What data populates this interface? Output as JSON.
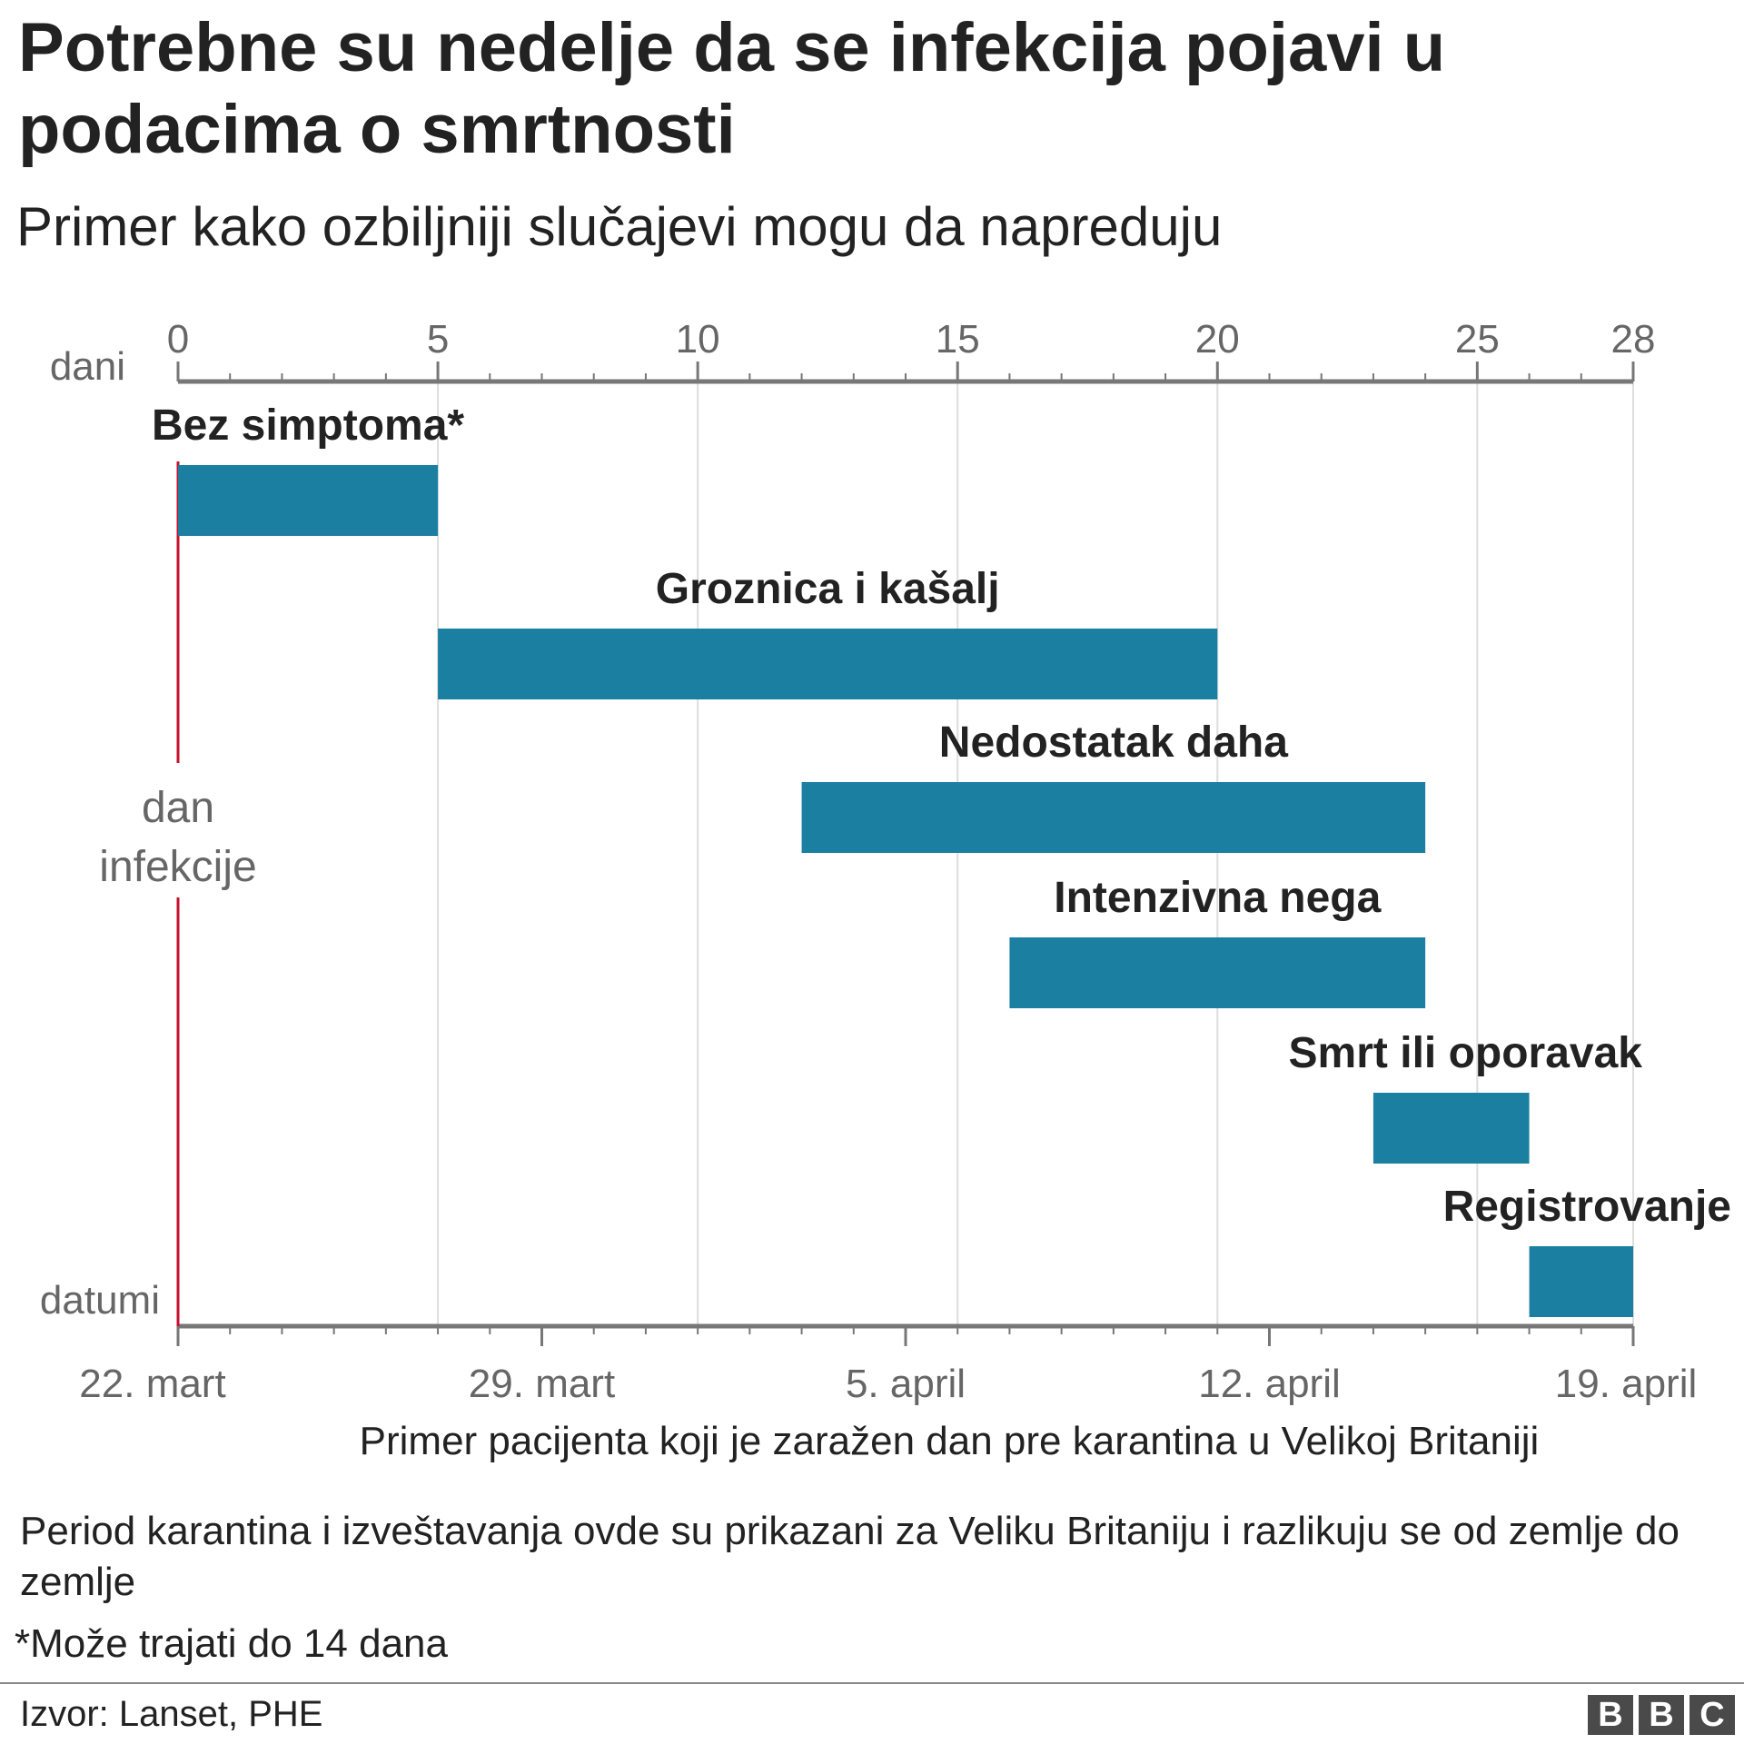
{
  "title": "Potrebne su nedelje da se infekcija pojavi u podacima o smrtnosti",
  "subtitle": "Primer kako ozbiljniji slučajevi mogu da napreduju",
  "chart_data": {
    "type": "bar",
    "orientation": "horizontal-timeline",
    "top_axis_label": "dani",
    "bottom_axis_label": "datumi",
    "xlim": [
      0,
      28
    ],
    "top_ticks": [
      0,
      5,
      10,
      15,
      20,
      25,
      28
    ],
    "bottom_ticks": [
      {
        "day": 0,
        "label": "22. mart"
      },
      {
        "day": 7,
        "label": "29. mart"
      },
      {
        "day": 14,
        "label": "5. april"
      },
      {
        "day": 21,
        "label": "12. april"
      },
      {
        "day": 28,
        "label": "19. april"
      }
    ],
    "grid": true,
    "infection_marker": {
      "day": 0,
      "label_line1": "dan",
      "label_line2": "infekcije",
      "color": "#c8102e"
    },
    "bar_color": "#1b7fa1",
    "bars": [
      {
        "label": "Bez simptoma*",
        "start": 0,
        "end": 5
      },
      {
        "label": "Groznica i kašalj",
        "start": 5,
        "end": 20
      },
      {
        "label": "Nedostatak daha",
        "start": 12,
        "end": 24
      },
      {
        "label": "Intenzivna nega",
        "start": 16,
        "end": 24
      },
      {
        "label": "Smrt ili oporavak",
        "start": 23,
        "end": 26
      },
      {
        "label": "Registrovanje",
        "start": 26,
        "end": 28
      }
    ],
    "caption": "Primer pacijenta koji je zaražen dan pre karantina u Velikoj Britaniji"
  },
  "notes": {
    "period": "Period karantina i izveštavanja ovde su prikazani za Veliku Britaniju i razlikuju se od zemlje do zemlje",
    "footnote": "*Može trajati do 14 dana"
  },
  "source": "Izvor: Lanset, PHE",
  "logo": {
    "letters": [
      "B",
      "B",
      "C"
    ]
  }
}
